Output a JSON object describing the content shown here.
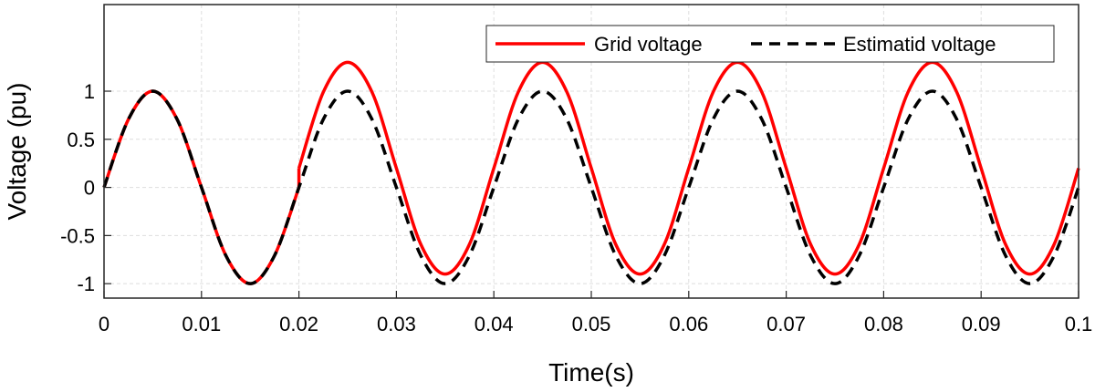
{
  "chart_data": {
    "type": "line",
    "xlabel": "Time(s)",
    "ylabel": "Voltage (pu)",
    "xlim": [
      0,
      0.1
    ],
    "ylim": [
      -1.15,
      1.9
    ],
    "xticks": [
      0,
      0.01,
      0.02,
      0.03,
      0.04,
      0.05,
      0.06,
      0.07,
      0.08,
      0.09,
      0.1
    ],
    "xtick_labels": [
      "0",
      "0.01",
      "0.02",
      "0.03",
      "0.04",
      "0.05",
      "0.06",
      "0.07",
      "0.08",
      "0.09",
      "0.1"
    ],
    "yticks": [
      -1,
      -0.5,
      0,
      0.5,
      1
    ],
    "ytick_labels": [
      "-1",
      "-0.5",
      "0",
      "0.5",
      "1"
    ],
    "grid": true,
    "legend_position": "top-right",
    "series": [
      {
        "name": "Grid voltage",
        "color": "#ff0000",
        "style": "solid",
        "x": [
          0,
          0.0025,
          0.005,
          0.0075,
          0.01,
          0.0125,
          0.015,
          0.0175,
          0.02,
          0.02,
          0.0225,
          0.025,
          0.0275,
          0.03,
          0.0325,
          0.035,
          0.0375,
          0.04,
          0.0425,
          0.045,
          0.0475,
          0.05,
          0.0525,
          0.055,
          0.0575,
          0.06,
          0.0625,
          0.065,
          0.0675,
          0.07,
          0.0725,
          0.075,
          0.0775,
          0.08,
          0.0825,
          0.085,
          0.0875,
          0.09,
          0.0925,
          0.095,
          0.0975,
          0.1
        ],
        "y": [
          0,
          0.707,
          1,
          0.707,
          0,
          -0.707,
          -1,
          -0.707,
          0,
          0.2,
          0.99,
          1.3,
          0.99,
          0.2,
          -0.59,
          -0.9,
          -0.59,
          0.2,
          0.99,
          1.3,
          0.99,
          0.2,
          -0.59,
          -0.9,
          -0.59,
          0.2,
          0.99,
          1.3,
          0.99,
          0.2,
          -0.59,
          -0.9,
          -0.59,
          0.2,
          0.99,
          1.3,
          0.99,
          0.2,
          -0.59,
          -0.9,
          -0.59,
          0.2
        ]
      },
      {
        "name": "Estimatid voltage",
        "color": "#000000",
        "style": "dashed",
        "x": [
          0,
          0.0025,
          0.005,
          0.0075,
          0.01,
          0.0125,
          0.015,
          0.0175,
          0.02,
          0.0225,
          0.025,
          0.0275,
          0.03,
          0.0325,
          0.035,
          0.0375,
          0.04,
          0.0425,
          0.045,
          0.0475,
          0.05,
          0.0525,
          0.055,
          0.0575,
          0.06,
          0.0625,
          0.065,
          0.0675,
          0.07,
          0.0725,
          0.075,
          0.0775,
          0.08,
          0.0825,
          0.085,
          0.0875,
          0.09,
          0.0925,
          0.095,
          0.0975,
          0.1
        ],
        "y": [
          0,
          0.707,
          1,
          0.707,
          0,
          -0.707,
          -1,
          -0.707,
          0,
          0.707,
          1,
          0.707,
          0,
          -0.707,
          -1,
          -0.707,
          0,
          0.707,
          1,
          0.707,
          0,
          -0.707,
          -1,
          -0.707,
          0,
          0.707,
          1,
          0.707,
          0,
          -0.707,
          -1,
          -0.707,
          0,
          0.707,
          1,
          0.707,
          0,
          -0.707,
          -1,
          -0.707,
          0
        ]
      }
    ]
  }
}
